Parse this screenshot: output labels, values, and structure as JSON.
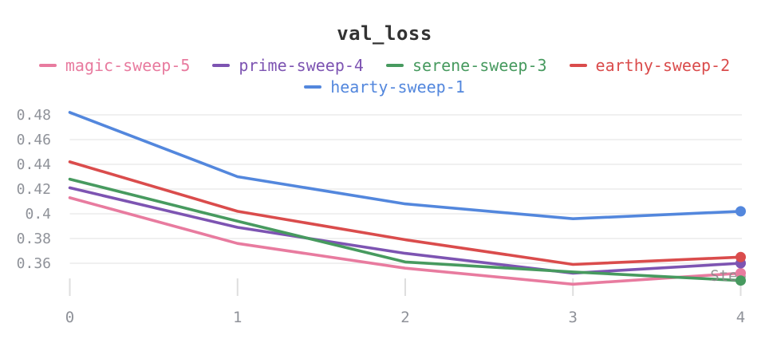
{
  "header": {
    "title": "val_loss"
  },
  "axes": {
    "x_label": "Step",
    "xtick_labels": [
      "0",
      "1",
      "2",
      "3",
      "4"
    ],
    "ytick_labels": [
      "0.48",
      "0.46",
      "0.44",
      "0.42",
      "0.4",
      "0.38",
      "0.36"
    ]
  },
  "colors": {
    "title_text": "#333333",
    "axis_text": "#8f9299",
    "step_label_text": "#8b8b8b",
    "gridline": "#ececec",
    "tick_mark": "#dedede",
    "background": "#ffffff"
  },
  "chart_data": {
    "type": "line",
    "title": "val_loss",
    "xlabel": "Step",
    "ylabel": "",
    "x": [
      0,
      1,
      2,
      3,
      4
    ],
    "yticks": [
      0.48,
      0.46,
      0.44,
      0.42,
      0.4,
      0.38,
      0.36
    ],
    "ylim": [
      0.335,
      0.49
    ],
    "xlim": [
      0,
      4
    ],
    "grid": "horizontal",
    "legend_position": "top-center",
    "marker": "endpoint-dot",
    "series": [
      {
        "name": "magic-sweep-5",
        "color": "#e87b9f",
        "values": [
          0.413,
          0.376,
          0.356,
          0.343,
          0.352
        ]
      },
      {
        "name": "prime-sweep-4",
        "color": "#7d54b2",
        "values": [
          0.421,
          0.389,
          0.368,
          0.352,
          0.36
        ]
      },
      {
        "name": "serene-sweep-3",
        "color": "#479a5f",
        "values": [
          0.428,
          0.394,
          0.361,
          0.353,
          0.346
        ]
      },
      {
        "name": "earthy-sweep-2",
        "color": "#da4c4c",
        "values": [
          0.442,
          0.402,
          0.379,
          0.359,
          0.365
        ]
      },
      {
        "name": "hearty-sweep-1",
        "color": "#5387dd",
        "values": [
          0.482,
          0.43,
          0.408,
          0.396,
          0.402
        ]
      }
    ]
  }
}
